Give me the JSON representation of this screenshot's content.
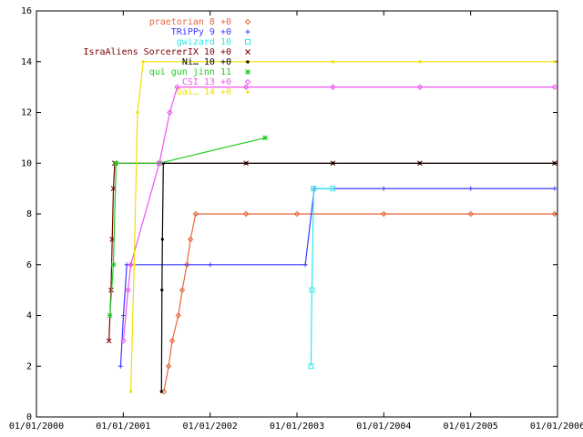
{
  "chart_data": {
    "type": "line",
    "title": "",
    "xlabel": "",
    "ylabel": "",
    "xlim": [
      "2000-01-01",
      "2006-01-01"
    ],
    "ylim": [
      0,
      16
    ],
    "grid": false,
    "legend_position": "top-center",
    "x_tick_labels": [
      "01/01/2000",
      "01/01/2001",
      "01/01/2002",
      "01/01/2003",
      "01/01/2004",
      "01/01/2005",
      "01/01/2006"
    ],
    "y_tick_labels": [
      "0",
      "2",
      "4",
      "6",
      "8",
      "10",
      "12",
      "14",
      "16"
    ],
    "series": [
      {
        "name": "praetorian 8 +0",
        "color": "#e8663c",
        "marker": "diamond",
        "points": [
          [
            "2001-06-20",
            1
          ],
          [
            "2001-07-10",
            2
          ],
          [
            "2001-07-25",
            3
          ],
          [
            "2001-08-20",
            4
          ],
          [
            "2001-09-05",
            5
          ],
          [
            "2001-09-25",
            6
          ],
          [
            "2001-10-10",
            7
          ],
          [
            "2001-11-01",
            8
          ],
          [
            "2002-06-01",
            8
          ],
          [
            "2003-01-01",
            8
          ],
          [
            "2004-01-01",
            8
          ],
          [
            "2005-01-01",
            8
          ],
          [
            "2005-12-20",
            8
          ]
        ]
      },
      {
        "name": "TRiPPy 9 +0",
        "color": "#3a3aff",
        "marker": "plus",
        "points": [
          [
            "2000-12-20",
            2
          ],
          [
            "2001-01-01",
            4
          ],
          [
            "2001-01-15",
            6
          ],
          [
            "2002-01-01",
            6
          ],
          [
            "2003-02-05",
            6
          ],
          [
            "2003-03-15",
            9
          ],
          [
            "2004-01-01",
            9
          ],
          [
            "2005-01-01",
            9
          ],
          [
            "2005-12-20",
            9
          ]
        ]
      },
      {
        "name": "gwizard 10",
        "color": "#2ee6e6",
        "marker": "square",
        "points": [
          [
            "2003-03-01",
            2
          ],
          [
            "2003-03-05",
            5
          ],
          [
            "2003-03-12",
            9
          ],
          [
            "2003-06-01",
            9
          ]
        ]
      },
      {
        "name": "IsraAliens  SorcererIX 10 +0",
        "color": "#7a0000",
        "marker": "cross",
        "points": [
          [
            "2000-11-01",
            3
          ],
          [
            "2000-11-10",
            5
          ],
          [
            "2000-11-15",
            7
          ],
          [
            "2000-11-20",
            9
          ],
          [
            "2000-11-25",
            10
          ],
          [
            "2001-06-01",
            10
          ],
          [
            "2002-06-01",
            10
          ],
          [
            "2003-06-01",
            10
          ],
          [
            "2004-06-01",
            10
          ],
          [
            "2005-12-20",
            10
          ]
        ]
      },
      {
        "name": "Ni… 10 +0",
        "color": "#000000",
        "marker": "dot",
        "points": [
          [
            "2001-06-10",
            1
          ],
          [
            "2001-06-12",
            5
          ],
          [
            "2001-06-14",
            7
          ],
          [
            "2001-06-18",
            10
          ],
          [
            "2002-06-01",
            10
          ],
          [
            "2003-06-01",
            10
          ],
          [
            "2004-06-01",
            10
          ],
          [
            "2005-12-20",
            10
          ]
        ]
      },
      {
        "name": "qui gun jinn 11",
        "color": "#22cc22",
        "marker": "star",
        "points": [
          [
            "2000-11-05",
            4
          ],
          [
            "2000-11-20",
            6
          ],
          [
            "2000-12-01",
            10
          ],
          [
            "2001-06-01",
            10
          ],
          [
            "2002-08-20",
            11
          ]
        ]
      },
      {
        "name": "CSI 13 +0",
        "color": "#ee55ee",
        "marker": "diamond",
        "points": [
          [
            "2001-01-01",
            3
          ],
          [
            "2001-01-20",
            5
          ],
          [
            "2001-02-01",
            6
          ],
          [
            "2001-06-01",
            10
          ],
          [
            "2001-07-15",
            12
          ],
          [
            "2001-08-15",
            13
          ],
          [
            "2002-06-01",
            13
          ],
          [
            "2003-06-01",
            13
          ],
          [
            "2004-06-01",
            13
          ],
          [
            "2005-12-20",
            13
          ]
        ]
      },
      {
        "name": "Gai… 14 +0",
        "color": "#f2e000",
        "marker": "dot",
        "points": [
          [
            "2001-02-01",
            1
          ],
          [
            "2001-02-15",
            6
          ],
          [
            "2001-03-01",
            12
          ],
          [
            "2001-03-25",
            14
          ],
          [
            "2002-06-01",
            14
          ],
          [
            "2003-06-01",
            14
          ],
          [
            "2004-06-01",
            14
          ],
          [
            "2005-12-20",
            14
          ]
        ]
      }
    ]
  }
}
